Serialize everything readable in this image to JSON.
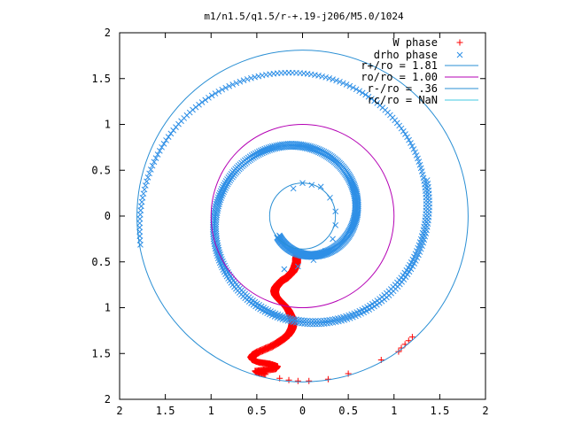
{
  "chart_data": {
    "type": "scatter",
    "title": "m1/n1.5/q1.5/r-+.19-j206/M5.0/1024",
    "xlim": [
      -2,
      2
    ],
    "ylim": [
      -2,
      2
    ],
    "x_tick_labels": [
      "2",
      "1.5",
      "1",
      "0.5",
      "0",
      "0.5",
      "1",
      "1.5",
      "2"
    ],
    "y_tick_labels": [
      "2",
      "1.5",
      "1",
      "0.5",
      "0",
      "0.5",
      "1",
      "1.5",
      "2"
    ],
    "x_tick_values": [
      -2,
      -1.5,
      -1,
      -0.5,
      0,
      0.5,
      1,
      1.5,
      2
    ],
    "y_tick_values": [
      2,
      1.5,
      1,
      0.5,
      0,
      -0.5,
      -1,
      -1.5,
      -2
    ],
    "grid": false,
    "legend_position": "top-right",
    "colors": {
      "w_phase": "#ff0000",
      "drho_phase": "#2e8fe6",
      "r_plus": "#2a8fd4",
      "r_o": "#b400b4",
      "r_minus": "#2a8fd4",
      "r_c": "#40c8e0"
    },
    "circles": [
      {
        "key": "r_plus",
        "label": "r+/ro = 1.81",
        "radius": 1.81
      },
      {
        "key": "r_o",
        "label": "ro/ro = 1.00",
        "radius": 1.0
      },
      {
        "key": "r_minus",
        "label": "r-/ro = .36",
        "radius": 0.36
      },
      {
        "key": "r_c",
        "label": "rc/ro = NaN",
        "radius": null
      }
    ],
    "series": [
      {
        "name": "W phase",
        "marker": "plus",
        "points": [
          [
            -0.06,
            -0.4
          ],
          [
            -0.07,
            -0.43
          ],
          [
            -0.08,
            -0.46
          ],
          [
            -0.08,
            -0.5
          ],
          [
            -0.09,
            -0.53
          ],
          [
            -0.1,
            -0.56
          ],
          [
            -0.12,
            -0.6
          ],
          [
            -0.15,
            -0.63
          ],
          [
            -0.19,
            -0.67
          ],
          [
            -0.24,
            -0.7
          ],
          [
            -0.28,
            -0.74
          ],
          [
            -0.31,
            -0.78
          ],
          [
            -0.32,
            -0.82
          ],
          [
            -0.31,
            -0.86
          ],
          [
            -0.28,
            -0.9
          ],
          [
            -0.24,
            -0.94
          ],
          [
            -0.2,
            -0.98
          ],
          [
            -0.17,
            -1.02
          ],
          [
            -0.15,
            -1.06
          ],
          [
            -0.13,
            -1.1
          ],
          [
            -0.12,
            -1.14
          ],
          [
            -0.12,
            -1.18
          ],
          [
            -0.13,
            -1.22
          ],
          [
            -0.15,
            -1.26
          ],
          [
            -0.18,
            -1.3
          ],
          [
            -0.23,
            -1.34
          ],
          [
            -0.29,
            -1.38
          ],
          [
            -0.36,
            -1.42
          ],
          [
            -0.43,
            -1.45
          ],
          [
            -0.5,
            -1.48
          ],
          [
            -0.55,
            -1.51
          ],
          [
            -0.57,
            -1.54
          ],
          [
            -0.55,
            -1.57
          ],
          [
            -0.5,
            -1.59
          ],
          [
            -0.43,
            -1.6
          ],
          [
            -0.36,
            -1.61
          ],
          [
            -0.3,
            -1.63
          ],
          [
            -0.32,
            -1.66
          ],
          [
            -0.38,
            -1.67
          ],
          [
            -0.45,
            -1.68
          ],
          [
            -0.52,
            -1.69
          ],
          [
            -0.5,
            -1.71
          ],
          [
            -0.42,
            -1.72
          ],
          [
            -0.25,
            -1.77
          ],
          [
            -0.15,
            -1.79
          ],
          [
            -0.05,
            -1.8
          ],
          [
            0.07,
            -1.8
          ],
          [
            0.28,
            -1.78
          ],
          [
            0.5,
            -1.72
          ],
          [
            0.86,
            -1.57
          ],
          [
            1.05,
            -1.48
          ],
          [
            1.08,
            -1.44
          ],
          [
            1.12,
            -1.4
          ],
          [
            1.16,
            -1.36
          ],
          [
            1.2,
            -1.32
          ]
        ]
      },
      {
        "name": "drho phase",
        "marker": "cross",
        "spiral": {
          "phi_start": 220,
          "phi_end": 910,
          "r_start": 0.33,
          "r_end": 1.8
        },
        "points": [
          [
            -0.1,
            0.3
          ],
          [
            0.0,
            0.36
          ],
          [
            0.1,
            0.34
          ],
          [
            0.2,
            0.32
          ],
          [
            0.3,
            0.2
          ],
          [
            0.36,
            0.05
          ],
          [
            0.36,
            -0.1
          ],
          [
            0.33,
            -0.25
          ],
          [
            0.25,
            -0.38
          ],
          [
            0.12,
            -0.48
          ],
          [
            -0.05,
            -0.55
          ],
          [
            -0.2,
            -0.58
          ]
        ]
      }
    ]
  }
}
